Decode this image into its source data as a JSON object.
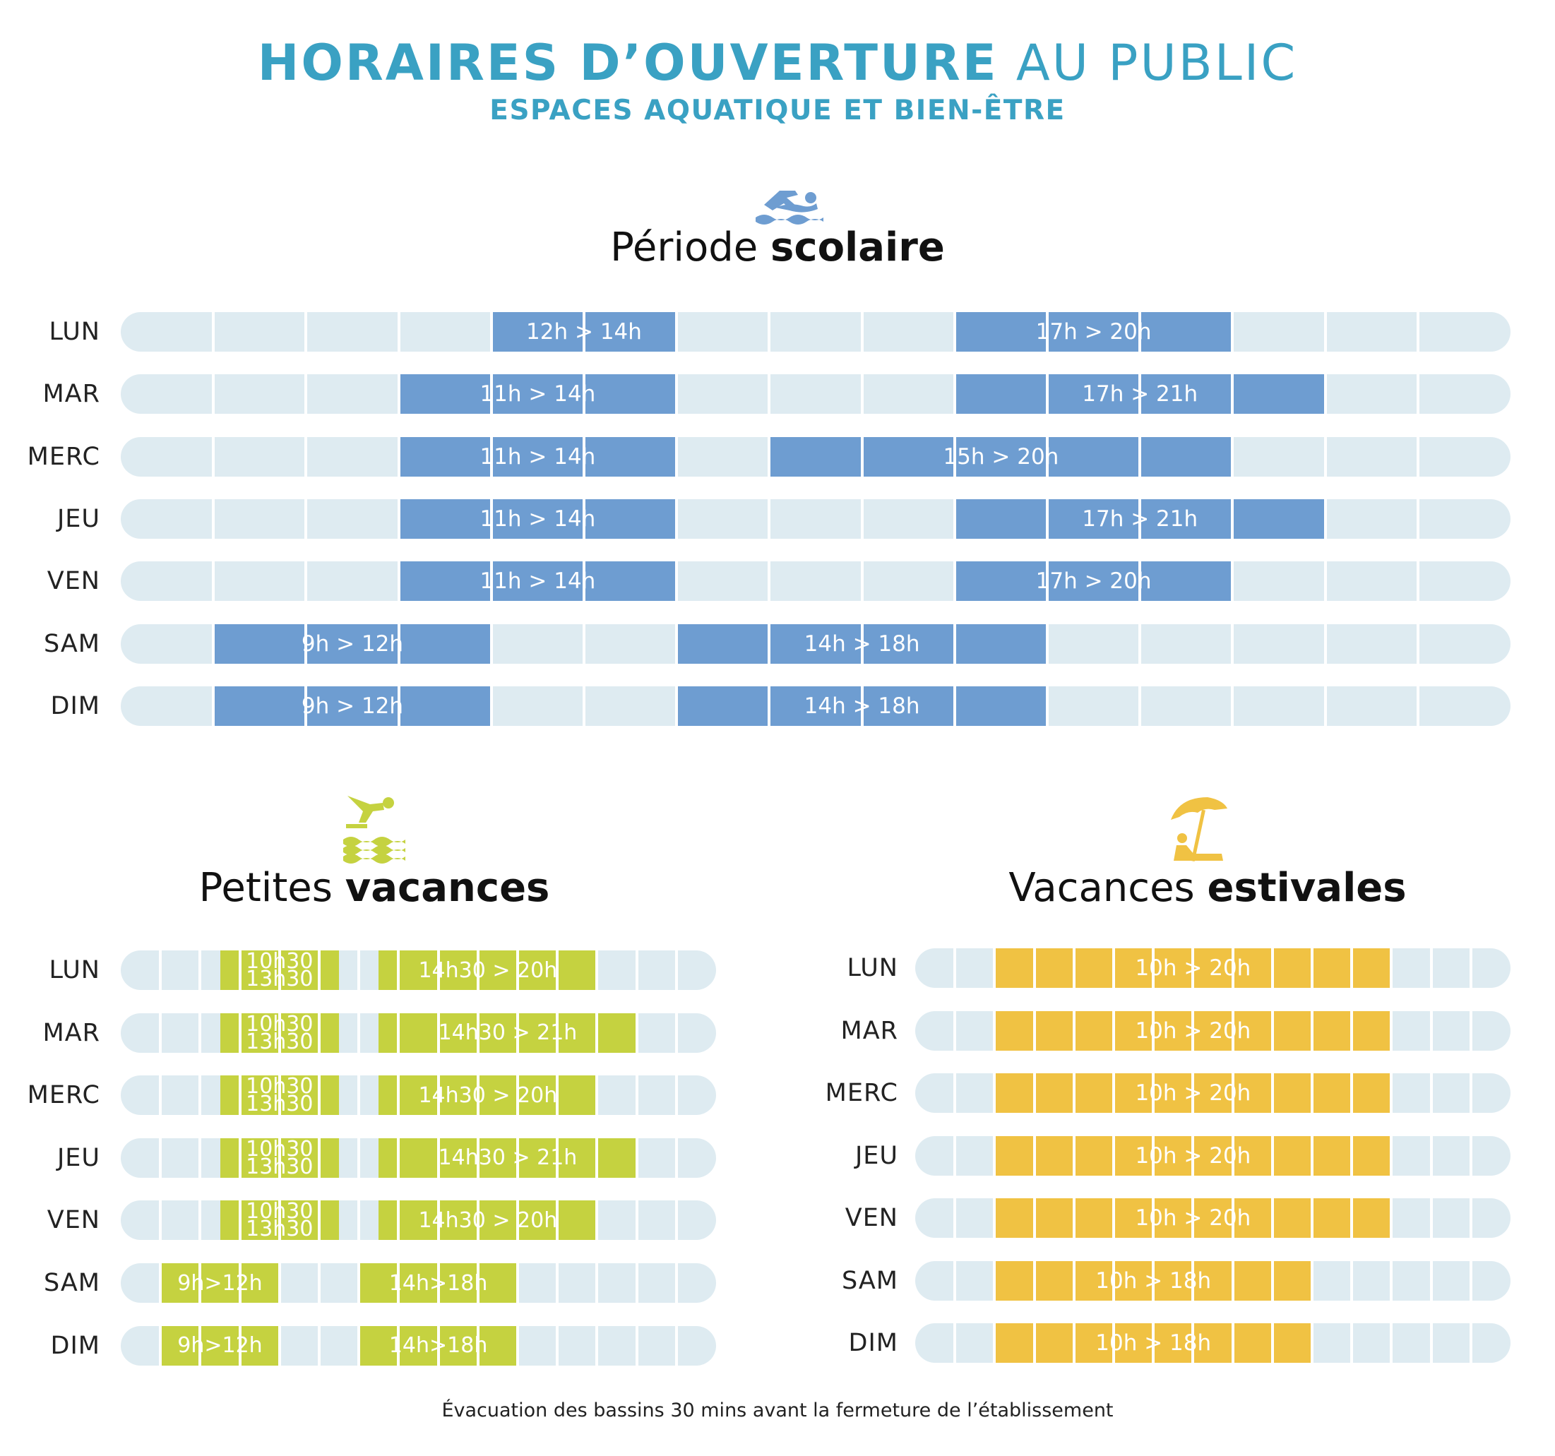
{
  "header": {
    "title_bold": "HORAIRES D’OUVERTURE",
    "title_light": "AU PUBLIC",
    "subtitle": "ESPACES AQUATIQUE ET BIEN-ÊTRE"
  },
  "footnote": "Évacuation des bassins 30 mins avant la fermeture de l’établissement",
  "colors": {
    "accent": "#3aa1c3",
    "scolaire": "#6e9dd1",
    "petites": "#c5d240",
    "estivales": "#f0c243",
    "track": "#deebf1"
  },
  "chart_data": [
    {
      "type": "bar",
      "icon": "swimmer-icon",
      "title_light": "Période",
      "title_bold": "scolaire",
      "hour_range": [
        8,
        23
      ],
      "rows": [
        {
          "day": "LUN",
          "slots": [
            {
              "start": 12,
              "end": 14,
              "label": "12h > 14h"
            },
            {
              "start": 17,
              "end": 20,
              "label": "17h > 20h"
            }
          ]
        },
        {
          "day": "MAR",
          "slots": [
            {
              "start": 11,
              "end": 14,
              "label": "11h > 14h"
            },
            {
              "start": 17,
              "end": 21,
              "label": "17h > 21h"
            }
          ]
        },
        {
          "day": "MERC",
          "slots": [
            {
              "start": 11,
              "end": 14,
              "label": "11h > 14h"
            },
            {
              "start": 15,
              "end": 20,
              "label": "15h > 20h"
            }
          ]
        },
        {
          "day": "JEU",
          "slots": [
            {
              "start": 11,
              "end": 14,
              "label": "11h > 14h"
            },
            {
              "start": 17,
              "end": 21,
              "label": "17h > 21h"
            }
          ]
        },
        {
          "day": "VEN",
          "slots": [
            {
              "start": 11,
              "end": 14,
              "label": "11h > 14h"
            },
            {
              "start": 17,
              "end": 20,
              "label": "17h > 20h"
            }
          ]
        },
        {
          "day": "SAM",
          "slots": [
            {
              "start": 9,
              "end": 12,
              "label": "9h > 12h"
            },
            {
              "start": 14,
              "end": 18,
              "label": "14h > 18h"
            }
          ]
        },
        {
          "day": "DIM",
          "slots": [
            {
              "start": 9,
              "end": 12,
              "label": "9h > 12h"
            },
            {
              "start": 14,
              "end": 18,
              "label": "14h > 18h"
            }
          ]
        }
      ]
    },
    {
      "type": "bar",
      "icon": "diver-icon",
      "title_light": "Petites",
      "title_bold": "vacances",
      "hour_range": [
        8,
        23
      ],
      "rows": [
        {
          "day": "LUN",
          "slots": [
            {
              "start": 10.5,
              "end": 13.5,
              "label": "10h30\n13h30"
            },
            {
              "start": 14.5,
              "end": 20,
              "label": "14h30 > 20h"
            }
          ]
        },
        {
          "day": "MAR",
          "slots": [
            {
              "start": 10.5,
              "end": 13.5,
              "label": "10h30\n13h30"
            },
            {
              "start": 14.5,
              "end": 21,
              "label": "14h30 > 21h"
            }
          ]
        },
        {
          "day": "MERC",
          "slots": [
            {
              "start": 10.5,
              "end": 13.5,
              "label": "10h30\n13h30"
            },
            {
              "start": 14.5,
              "end": 20,
              "label": "14h30 > 20h"
            }
          ]
        },
        {
          "day": "JEU",
          "slots": [
            {
              "start": 10.5,
              "end": 13.5,
              "label": "10h30\n13h30"
            },
            {
              "start": 14.5,
              "end": 21,
              "label": "14h30 > 21h"
            }
          ]
        },
        {
          "day": "VEN",
          "slots": [
            {
              "start": 10.5,
              "end": 13.5,
              "label": "10h30\n13h30"
            },
            {
              "start": 14.5,
              "end": 20,
              "label": "14h30 > 20h"
            }
          ]
        },
        {
          "day": "SAM",
          "slots": [
            {
              "start": 9,
              "end": 12,
              "label": "9h>12h"
            },
            {
              "start": 14,
              "end": 18,
              "label": "14h>18h"
            }
          ]
        },
        {
          "day": "DIM",
          "slots": [
            {
              "start": 9,
              "end": 12,
              "label": "9h>12h"
            },
            {
              "start": 14,
              "end": 18,
              "label": "14h>18h"
            }
          ]
        }
      ]
    },
    {
      "type": "bar",
      "icon": "beach-umbrella-icon",
      "title_light": "Vacances",
      "title_bold": "estivales",
      "hour_range": [
        8,
        23
      ],
      "rows": [
        {
          "day": "LUN",
          "slots": [
            {
              "start": 10,
              "end": 20,
              "label": "10h > 20h"
            }
          ]
        },
        {
          "day": "MAR",
          "slots": [
            {
              "start": 10,
              "end": 20,
              "label": "10h > 20h"
            }
          ]
        },
        {
          "day": "MERC",
          "slots": [
            {
              "start": 10,
              "end": 20,
              "label": "10h > 20h"
            }
          ]
        },
        {
          "day": "JEU",
          "slots": [
            {
              "start": 10,
              "end": 20,
              "label": "10h > 20h"
            }
          ]
        },
        {
          "day": "VEN",
          "slots": [
            {
              "start": 10,
              "end": 20,
              "label": "10h > 20h"
            }
          ]
        },
        {
          "day": "SAM",
          "slots": [
            {
              "start": 10,
              "end": 18,
              "label": "10h > 18h"
            }
          ]
        },
        {
          "day": "DIM",
          "slots": [
            {
              "start": 10,
              "end": 18,
              "label": "10h > 18h"
            }
          ]
        }
      ]
    }
  ]
}
